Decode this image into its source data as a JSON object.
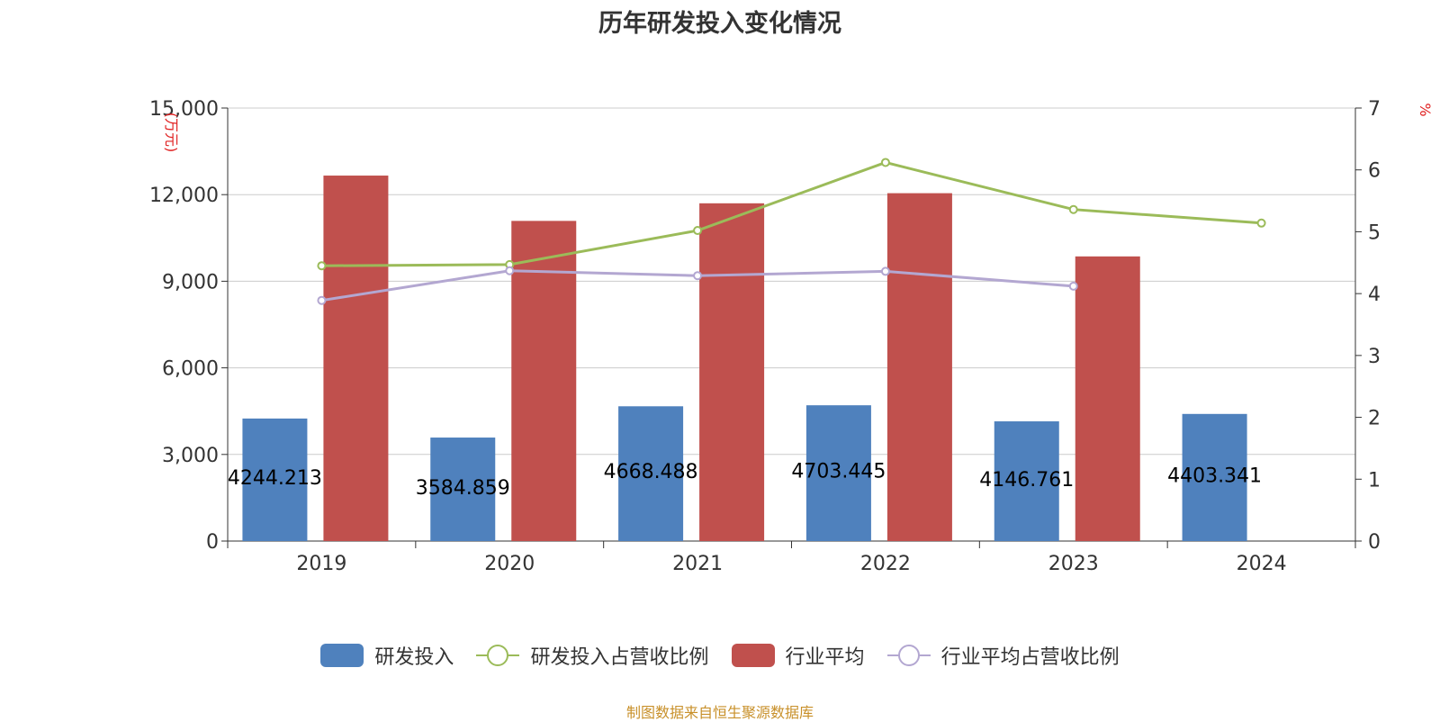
{
  "chart_data": {
    "type": "bar",
    "title": "历年研发投入变化情况",
    "categories": [
      "2019",
      "2020",
      "2021",
      "2022",
      "2023",
      "2024"
    ],
    "y_left": {
      "label": "(万元)",
      "ticks": [
        "0",
        "3,000",
        "6,000",
        "9,000",
        "12,000",
        "15,000"
      ],
      "range": [
        0,
        15000
      ]
    },
    "y_right": {
      "label": "%",
      "ticks": [
        "0",
        "1",
        "2",
        "3",
        "4",
        "5",
        "6",
        "7"
      ],
      "range": [
        0,
        7
      ]
    },
    "series": [
      {
        "name": "研发投入",
        "type": "bar",
        "axis": "left",
        "color": "#4f81bd",
        "values": [
          4244.213,
          3584.859,
          4668.488,
          4703.445,
          4146.761,
          4403.341
        ],
        "labels": [
          "4244.213",
          "3584.859",
          "4668.488",
          "4703.445",
          "4146.761",
          "4403.341"
        ]
      },
      {
        "name": "研发投入占营收比例",
        "type": "line",
        "axis": "right",
        "color": "#9bbb59",
        "values": [
          4.45,
          4.47,
          5.02,
          6.12,
          5.36,
          5.14
        ]
      },
      {
        "name": "行业平均",
        "type": "bar",
        "axis": "left",
        "color": "#c0504d",
        "values": [
          12660,
          11090,
          11700,
          12050,
          9860,
          null
        ]
      },
      {
        "name": "行业平均占营收比例",
        "type": "line",
        "axis": "right",
        "color": "#b3a7d1",
        "values": [
          3.89,
          4.37,
          4.29,
          4.36,
          4.12,
          null
        ]
      }
    ],
    "grid": true,
    "legend_position": "bottom"
  },
  "footer": {
    "source": "制图数据来自恒生聚源数据库"
  }
}
